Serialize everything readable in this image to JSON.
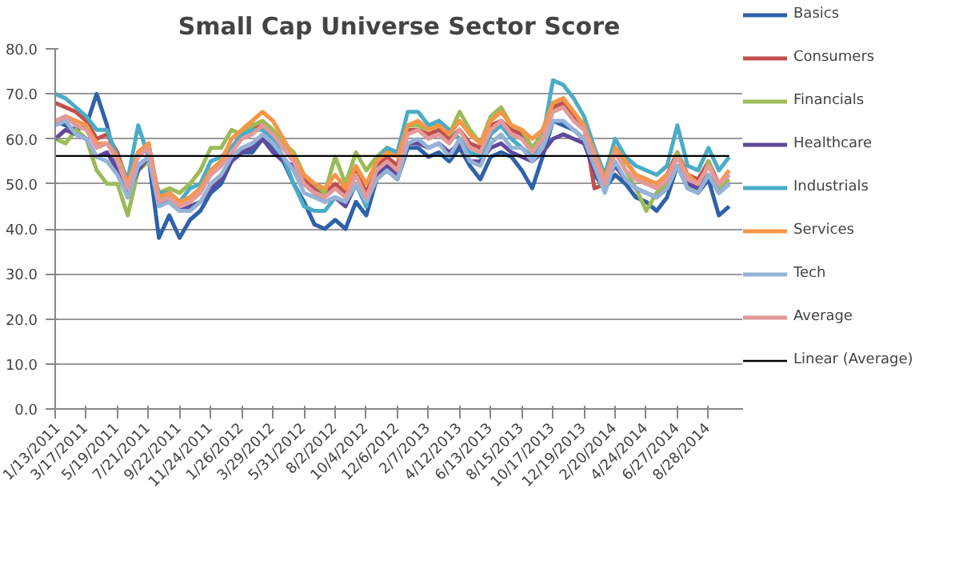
{
  "chart_data": {
    "type": "line",
    "title": "Small Cap Universe Sector Score",
    "x": [
      "2011-01-13",
      "2011-02-03",
      "2011-02-24",
      "2011-03-17",
      "2011-04-07",
      "2011-04-28",
      "2011-05-19",
      "2011-06-09",
      "2011-06-30",
      "2011-07-21",
      "2011-08-11",
      "2011-09-01",
      "2011-09-22",
      "2011-10-13",
      "2011-11-03",
      "2011-11-24",
      "2011-12-15",
      "2012-01-05",
      "2012-01-26",
      "2012-02-16",
      "2012-03-08",
      "2012-03-29",
      "2012-04-19",
      "2012-05-10",
      "2012-05-31",
      "2012-06-21",
      "2012-07-12",
      "2012-08-02",
      "2012-08-23",
      "2012-09-13",
      "2012-10-04",
      "2012-10-25",
      "2012-11-15",
      "2012-12-06",
      "2012-12-27",
      "2013-01-17",
      "2013-02-07",
      "2013-02-28",
      "2013-03-21",
      "2013-04-11",
      "2013-05-02",
      "2013-05-23",
      "2013-06-13",
      "2013-07-04",
      "2013-07-25",
      "2013-08-15",
      "2013-09-05",
      "2013-09-26",
      "2013-10-17",
      "2013-11-07",
      "2013-11-28",
      "2013-12-19",
      "2014-01-09",
      "2014-01-30",
      "2014-02-20",
      "2014-03-13",
      "2014-04-03",
      "2014-04-24",
      "2014-05-15",
      "2014-06-05",
      "2014-06-26",
      "2014-07-17",
      "2014-08-07",
      "2014-08-28",
      "2014-09-18",
      "2014-10-09"
    ],
    "series": [
      {
        "name": "Basics",
        "color": "#2e62a8",
        "values": [
          64,
          63,
          62,
          63,
          70,
          63,
          53,
          47,
          54,
          56,
          38,
          43,
          38,
          42,
          44,
          48,
          50,
          55,
          57,
          57,
          60,
          58,
          55,
          50,
          46,
          41,
          40,
          42,
          40,
          46,
          43,
          51,
          53,
          51,
          58,
          58,
          56,
          57,
          55,
          58,
          54,
          51,
          56,
          57,
          56,
          53,
          49,
          56,
          64,
          63,
          62,
          60,
          52,
          49,
          52,
          50,
          47,
          46,
          44,
          47,
          54,
          49,
          48,
          51,
          43,
          45
        ]
      },
      {
        "name": "Consumers",
        "color": "#c0504d",
        "values": [
          68,
          67,
          66,
          64,
          60,
          61,
          57,
          50,
          57,
          59,
          47,
          48,
          46,
          47,
          49,
          53,
          55,
          58,
          61,
          62,
          63,
          61,
          58,
          55,
          51,
          49,
          48,
          50,
          48,
          53,
          48,
          54,
          56,
          54,
          62,
          62,
          61,
          62,
          60,
          62,
          59,
          58,
          63,
          64,
          62,
          61,
          58,
          61,
          67,
          68,
          65,
          63,
          49,
          50,
          58,
          55,
          52,
          51,
          50,
          52,
          57,
          52,
          51,
          55,
          50,
          52
        ]
      },
      {
        "name": "Financials",
        "color": "#9bbb59",
        "values": [
          60,
          59,
          62,
          60,
          53,
          50,
          50,
          43,
          53,
          55,
          48,
          49,
          48,
          50,
          53,
          58,
          58,
          62,
          61,
          63,
          64,
          62,
          59,
          57,
          52,
          50,
          48,
          56,
          50,
          57,
          53,
          56,
          58,
          56,
          63,
          63,
          62,
          64,
          61,
          66,
          62,
          59,
          65,
          67,
          63,
          62,
          58,
          61,
          68,
          69,
          66,
          63,
          55,
          51,
          58,
          53,
          49,
          44,
          48,
          50,
          57,
          51,
          48,
          55,
          49,
          51
        ]
      },
      {
        "name": "Healthcare",
        "color": "#604a9b",
        "values": [
          60,
          62,
          61,
          60,
          56,
          57,
          53,
          48,
          53,
          56,
          46,
          46,
          44,
          45,
          46,
          49,
          51,
          55,
          57,
          58,
          60,
          57,
          55,
          54,
          50,
          48,
          46,
          47,
          45,
          50,
          45,
          52,
          54,
          52,
          59,
          59,
          58,
          59,
          57,
          59,
          55,
          55,
          58,
          59,
          57,
          56,
          55,
          57,
          60,
          61,
          60,
          59,
          53,
          50,
          54,
          51,
          49,
          48,
          47,
          49,
          54,
          50,
          49,
          52,
          48,
          50
        ]
      },
      {
        "name": "Industrials",
        "color": "#4bacc6",
        "values": [
          70,
          69,
          67,
          65,
          62,
          62,
          56,
          51,
          63,
          56,
          48,
          48,
          46,
          49,
          50,
          55,
          56,
          58,
          61,
          62,
          62,
          60,
          56,
          50,
          45,
          44,
          44,
          47,
          46,
          50,
          45,
          55,
          58,
          57,
          66,
          66,
          63,
          64,
          62,
          60,
          57,
          56,
          61,
          63,
          60,
          58,
          56,
          60,
          73,
          72,
          69,
          65,
          58,
          52,
          60,
          56,
          54,
          53,
          52,
          54,
          63,
          54,
          53,
          58,
          53,
          56
        ]
      },
      {
        "name": "Services",
        "color": "#f79646",
        "values": [
          63,
          65,
          64,
          63,
          59,
          59,
          56,
          50,
          57,
          59,
          47,
          48,
          46,
          47,
          49,
          53,
          55,
          60,
          62,
          64,
          66,
          64,
          60,
          56,
          52,
          50,
          49,
          52,
          49,
          54,
          50,
          55,
          57,
          56,
          63,
          64,
          62,
          63,
          61,
          64,
          61,
          59,
          64,
          66,
          63,
          62,
          60,
          62,
          68,
          69,
          66,
          63,
          57,
          51,
          58,
          55,
          52,
          51,
          50,
          52,
          56,
          52,
          50,
          54,
          50,
          53
        ]
      },
      {
        "name": "Tech",
        "color": "#95b3d7",
        "values": [
          63,
          64,
          61,
          60,
          56,
          55,
          52,
          47,
          54,
          56,
          45,
          46,
          44,
          44,
          46,
          50,
          52,
          56,
          58,
          59,
          61,
          59,
          56,
          53,
          48,
          47,
          46,
          47,
          46,
          50,
          46,
          51,
          53,
          51,
          59,
          60,
          58,
          59,
          56,
          60,
          55,
          54,
          59,
          61,
          58,
          58,
          55,
          58,
          64,
          64,
          62,
          60,
          54,
          48,
          55,
          51,
          49,
          48,
          47,
          49,
          54,
          49,
          48,
          52,
          48,
          50
        ]
      },
      {
        "name": "Average",
        "color": "#e39a9a",
        "values": [
          64,
          65,
          63,
          62,
          58,
          59,
          55,
          49,
          56,
          58,
          46,
          47,
          45,
          46,
          48,
          52,
          54,
          57,
          60,
          61,
          63,
          61,
          58,
          55,
          50,
          48,
          47,
          49,
          47,
          52,
          47,
          53,
          55,
          53,
          61,
          62,
          60,
          61,
          59,
          62,
          58,
          57,
          62,
          64,
          61,
          60,
          57,
          60,
          66,
          67,
          64,
          62,
          56,
          50,
          57,
          53,
          51,
          50,
          49,
          51,
          56,
          51,
          50,
          54,
          50,
          52
        ]
      },
      {
        "name": "Linear (Average)",
        "color": "#000000",
        "type": "line",
        "x": [
          "2011-01-13",
          "2014-10-09"
        ],
        "values": [
          56.2,
          56.2
        ]
      }
    ],
    "ylim": [
      0,
      80
    ],
    "yticks": [
      {
        "value": 0,
        "label": "0.0"
      },
      {
        "value": 10,
        "label": "10.0"
      },
      {
        "value": 20,
        "label": "20.0"
      },
      {
        "value": 30,
        "label": "30.0"
      },
      {
        "value": 40,
        "label": "40.0"
      },
      {
        "value": 50,
        "label": "50.0"
      },
      {
        "value": 60,
        "label": "60.0"
      },
      {
        "value": 70,
        "label": "70.0"
      },
      {
        "value": 80,
        "label": "80.0"
      }
    ],
    "xlim": [
      "2011-01-13",
      "2014-11-06"
    ],
    "xticks": [
      {
        "value": "2011-01-13",
        "label": "1/13/2011"
      },
      {
        "value": "2011-03-17",
        "label": "3/17/2011"
      },
      {
        "value": "2011-05-19",
        "label": "5/19/2011"
      },
      {
        "value": "2011-07-21",
        "label": "7/21/2011"
      },
      {
        "value": "2011-09-22",
        "label": "9/22/2011"
      },
      {
        "value": "2011-11-24",
        "label": "11/24/2011"
      },
      {
        "value": "2012-01-26",
        "label": "1/26/2012"
      },
      {
        "value": "2012-03-29",
        "label": "3/29/2012"
      },
      {
        "value": "2012-05-31",
        "label": "5/31/2012"
      },
      {
        "value": "2012-08-02",
        "label": "8/2/2012"
      },
      {
        "value": "2012-10-04",
        "label": "10/4/2012"
      },
      {
        "value": "2012-12-06",
        "label": "12/6/2012"
      },
      {
        "value": "2013-02-07",
        "label": "2/7/2013"
      },
      {
        "value": "2013-04-12",
        "label": "4/12/2013"
      },
      {
        "value": "2013-06-13",
        "label": "6/13/2013"
      },
      {
        "value": "2013-08-15",
        "label": "8/15/2013"
      },
      {
        "value": "2013-10-17",
        "label": "10/17/2013"
      },
      {
        "value": "2013-12-19",
        "label": "12/19/2013"
      },
      {
        "value": "2014-02-20",
        "label": "2/20/2014"
      },
      {
        "value": "2014-04-24",
        "label": "4/24/2014"
      },
      {
        "value": "2014-06-27",
        "label": "6/27/2014"
      },
      {
        "value": "2014-08-28",
        "label": "8/28/2014"
      }
    ],
    "grid": "y",
    "legend": "right",
    "line_style": "solid"
  }
}
